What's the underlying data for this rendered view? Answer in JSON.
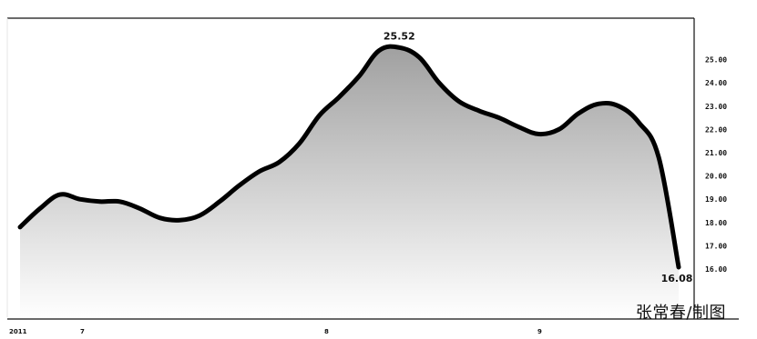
{
  "chart_data": {
    "type": "area",
    "title": "",
    "xlabel": "",
    "ylabel": "",
    "x_tick_labels": [
      "2011",
      "7",
      "8",
      "9"
    ],
    "y_ticks": [
      16,
      17,
      18,
      19,
      20,
      21,
      22,
      23,
      24,
      25
    ],
    "y_tick_labels": [
      "16.00",
      "17.00",
      "18.00",
      "19.00",
      "20.00",
      "21.00",
      "22.00",
      "23.00",
      "24.00",
      "25.00"
    ],
    "ylim": [
      16,
      26
    ],
    "series": [
      {
        "values": [
          17.8,
          18.6,
          19.2,
          19.0,
          18.9,
          18.9,
          18.6,
          18.2,
          18.1,
          18.3,
          18.9,
          19.6,
          20.2,
          20.6,
          21.4,
          22.6,
          23.4,
          24.3,
          25.4,
          25.52,
          25.1,
          24.0,
          23.2,
          22.8,
          22.5,
          22.1,
          21.8,
          22.0,
          22.7,
          23.1,
          23.0,
          22.3,
          20.8,
          16.08
        ]
      }
    ],
    "annotations": {
      "max_label": "25.52",
      "last_label": "16.08"
    },
    "fill_top": "#a0a0a0",
    "fill_bottom": "#ffffff",
    "line_color": "#000000",
    "grid": false,
    "y_axis_side": "right"
  },
  "credit": "张常春/制图"
}
